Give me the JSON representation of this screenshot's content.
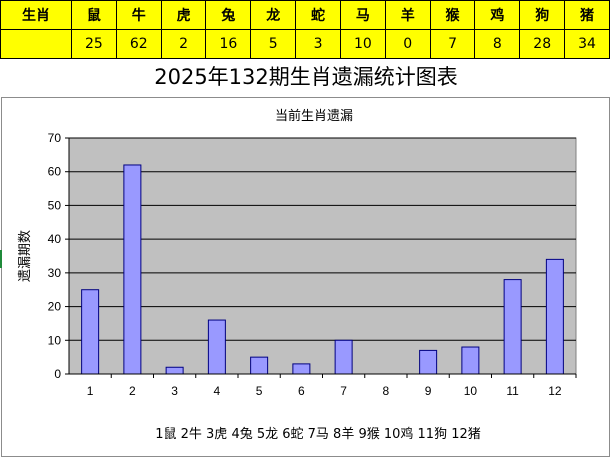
{
  "table": {
    "header_label": "生肖",
    "animals": [
      "鼠",
      "牛",
      "虎",
      "兔",
      "龙",
      "蛇",
      "马",
      "羊",
      "猴",
      "鸡",
      "狗",
      "猪"
    ],
    "counts": [
      "25",
      "62",
      "2",
      "16",
      "5",
      "3",
      "10",
      "0",
      "7",
      "8",
      "28",
      "34"
    ]
  },
  "page": {
    "title": "2025年132期生肖遗漏统计图表"
  },
  "colors": {
    "table_bg": "#ffff00",
    "plot_bg": "#c0c0c0",
    "bar_fill": "#9999ff",
    "bar_stroke": "#000080"
  },
  "chart_data": {
    "type": "bar",
    "title": "当前生肖遗漏",
    "ylabel": "遗漏期数",
    "xlabel": "1鼠  2牛  3虎  4兔  5龙  6蛇  7马  8羊  9猴  10鸡  11狗  12猪",
    "categories": [
      "1",
      "2",
      "3",
      "4",
      "5",
      "6",
      "7",
      "8",
      "9",
      "10",
      "11",
      "12"
    ],
    "values": [
      25,
      62,
      2,
      16,
      5,
      3,
      10,
      0,
      7,
      8,
      28,
      34
    ],
    "ylim": [
      0,
      70
    ],
    "yticks": [
      0,
      10,
      20,
      30,
      40,
      50,
      60,
      70
    ],
    "grid": true,
    "legend": "none"
  }
}
